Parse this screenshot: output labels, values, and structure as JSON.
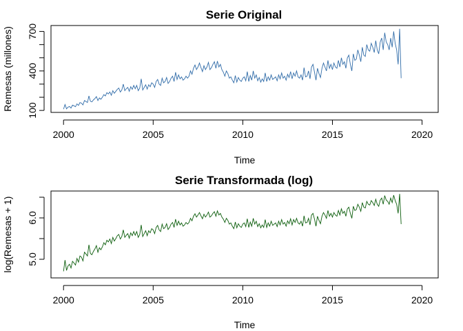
{
  "chart_data": [
    {
      "type": "line",
      "title": "Serie Original",
      "xlabel": "Time",
      "ylabel": "Remesas (millones)",
      "color": "#2F6BA8",
      "xlim": [
        1999.3,
        2020.9
      ],
      "ylim": [
        85,
        745
      ],
      "x_ticks": [
        2000,
        2005,
        2010,
        2015,
        2020
      ],
      "x_tick_labels": [
        "2000",
        "2005",
        "2010",
        "2015",
        "2020"
      ],
      "y_ticks": [
        100,
        200,
        300,
        400,
        500,
        600,
        700
      ],
      "y_tick_labels": [
        "100",
        "",
        "",
        "400",
        "",
        "",
        "700"
      ],
      "series": [
        {
          "x_start": 2000.0,
          "x_step": 0.08333,
          "values": [
            110,
            145,
            112,
            125,
            130,
            118,
            140,
            135,
            128,
            150,
            138,
            160,
            155,
            142,
            175,
            168,
            160,
            210,
            170,
            165,
            180,
            190,
            205,
            175,
            195,
            185,
            200,
            220,
            210,
            235,
            225,
            240,
            215,
            250,
            230,
            245,
            260,
            270,
            240,
            255,
            300,
            250,
            265,
            275,
            245,
            280,
            260,
            290,
            265,
            290,
            250,
            270,
            340,
            255,
            275,
            295,
            262,
            295,
            280,
            310,
            300,
            275,
            320,
            335,
            300,
            290,
            345,
            310,
            320,
            350,
            305,
            320,
            345,
            360,
            320,
            390,
            335,
            370,
            340,
            355,
            330,
            340,
            360,
            345,
            360,
            400,
            375,
            420,
            445,
            410,
            430,
            460,
            425,
            395,
            440,
            410,
            430,
            465,
            410,
            425,
            450,
            470,
            420,
            475,
            430,
            450,
            410,
            390,
            360,
            400,
            380,
            345,
            355,
            330,
            310,
            365,
            315,
            350,
            330,
            320,
            345,
            355,
            325,
            395,
            320,
            365,
            330,
            400,
            345,
            370,
            325,
            350,
            315,
            340,
            320,
            385,
            320,
            355,
            330,
            370,
            335,
            345,
            355,
            325,
            370,
            340,
            385,
            345,
            360,
            330,
            375,
            350,
            395,
            340,
            385,
            360,
            400,
            355,
            345,
            370,
            330,
            425,
            355,
            360,
            400,
            340,
            430,
            450,
            390,
            330,
            420,
            380,
            350,
            420,
            460,
            430,
            400,
            480,
            420,
            450,
            410,
            460,
            430,
            420,
            480,
            430,
            500,
            450,
            470,
            420,
            500,
            520,
            450,
            400,
            530,
            480,
            490,
            560,
            520,
            470,
            580,
            520,
            510,
            600,
            560,
            550,
            610,
            580,
            540,
            630,
            560,
            530,
            620,
            650,
            560,
            690,
            620,
            600,
            560,
            650,
            580,
            700,
            610,
            560,
            450,
            720,
            345
          ]
        }
      ]
    },
    {
      "type": "line",
      "title": "Serie Transformada (log)",
      "xlabel": "Time",
      "ylabel": "log(Remesas + 1)",
      "color": "#0A5C0A",
      "xlim": [
        1999.3,
        2020.9
      ],
      "ylim": [
        4.55,
        6.65
      ],
      "x_ticks": [
        2000,
        2005,
        2010,
        2015,
        2020
      ],
      "x_tick_labels": [
        "2000",
        "2005",
        "2010",
        "2015",
        "2020"
      ],
      "y_ticks": [
        5.0,
        5.5,
        6.0,
        6.5
      ],
      "y_tick_labels": [
        "5.0",
        "",
        "6.0",
        ""
      ],
      "series": [
        {
          "x_start": 2000.0,
          "x_step": 0.08333,
          "values": [
            4.71,
            4.98,
            4.73,
            4.84,
            4.88,
            4.79,
            4.95,
            4.91,
            4.86,
            5.02,
            4.93,
            5.08,
            5.05,
            4.96,
            5.17,
            5.13,
            5.08,
            5.35,
            5.14,
            5.11,
            5.19,
            5.25,
            5.33,
            5.17,
            5.28,
            5.23,
            5.3,
            5.4,
            5.35,
            5.46,
            5.42,
            5.49,
            5.38,
            5.53,
            5.44,
            5.5,
            5.57,
            5.6,
            5.49,
            5.55,
            5.71,
            5.53,
            5.58,
            5.62,
            5.51,
            5.64,
            5.57,
            5.67,
            5.58,
            5.67,
            5.53,
            5.6,
            5.83,
            5.55,
            5.62,
            5.69,
            5.57,
            5.69,
            5.64,
            5.74,
            5.71,
            5.62,
            5.77,
            5.82,
            5.71,
            5.67,
            5.85,
            5.74,
            5.77,
            5.86,
            5.72,
            5.77,
            5.85,
            5.89,
            5.77,
            5.97,
            5.82,
            5.92,
            5.83,
            5.88,
            5.8,
            5.83,
            5.89,
            5.85,
            5.89,
            5.99,
            5.93,
            6.04,
            6.1,
            6.02,
            6.07,
            6.13,
            6.05,
            5.98,
            6.09,
            6.02,
            6.07,
            6.14,
            6.02,
            6.05,
            6.11,
            6.15,
            6.04,
            6.17,
            6.07,
            6.11,
            6.02,
            5.97,
            5.89,
            5.99,
            5.94,
            5.85,
            5.88,
            5.8,
            5.74,
            5.9,
            5.76,
            5.86,
            5.8,
            5.77,
            5.85,
            5.88,
            5.79,
            5.98,
            5.77,
            5.9,
            5.8,
            5.99,
            5.85,
            5.92,
            5.79,
            5.86,
            5.76,
            5.83,
            5.77,
            5.96,
            5.77,
            5.88,
            5.8,
            5.92,
            5.82,
            5.85,
            5.88,
            5.79,
            5.92,
            5.83,
            5.96,
            5.85,
            5.89,
            5.8,
            5.93,
            5.86,
            5.98,
            5.83,
            5.96,
            5.89,
            5.99,
            5.88,
            5.85,
            5.92,
            5.8,
            6.05,
            5.88,
            5.89,
            5.99,
            5.83,
            6.07,
            6.11,
            5.97,
            5.8,
            6.04,
            5.94,
            5.86,
            6.04,
            6.13,
            6.07,
            5.99,
            6.18,
            6.04,
            6.11,
            6.02,
            6.13,
            6.07,
            6.04,
            6.18,
            6.07,
            6.22,
            6.11,
            6.16,
            6.04,
            6.22,
            6.26,
            6.11,
            5.99,
            6.28,
            6.18,
            6.2,
            6.33,
            6.26,
            6.16,
            6.37,
            6.26,
            6.24,
            6.4,
            6.33,
            6.31,
            6.42,
            6.37,
            6.3,
            6.45,
            6.33,
            6.28,
            6.43,
            6.48,
            6.33,
            6.54,
            6.43,
            6.4,
            6.33,
            6.48,
            6.37,
            6.55,
            6.42,
            6.33,
            6.11,
            6.58,
            5.85
          ]
        }
      ]
    }
  ]
}
